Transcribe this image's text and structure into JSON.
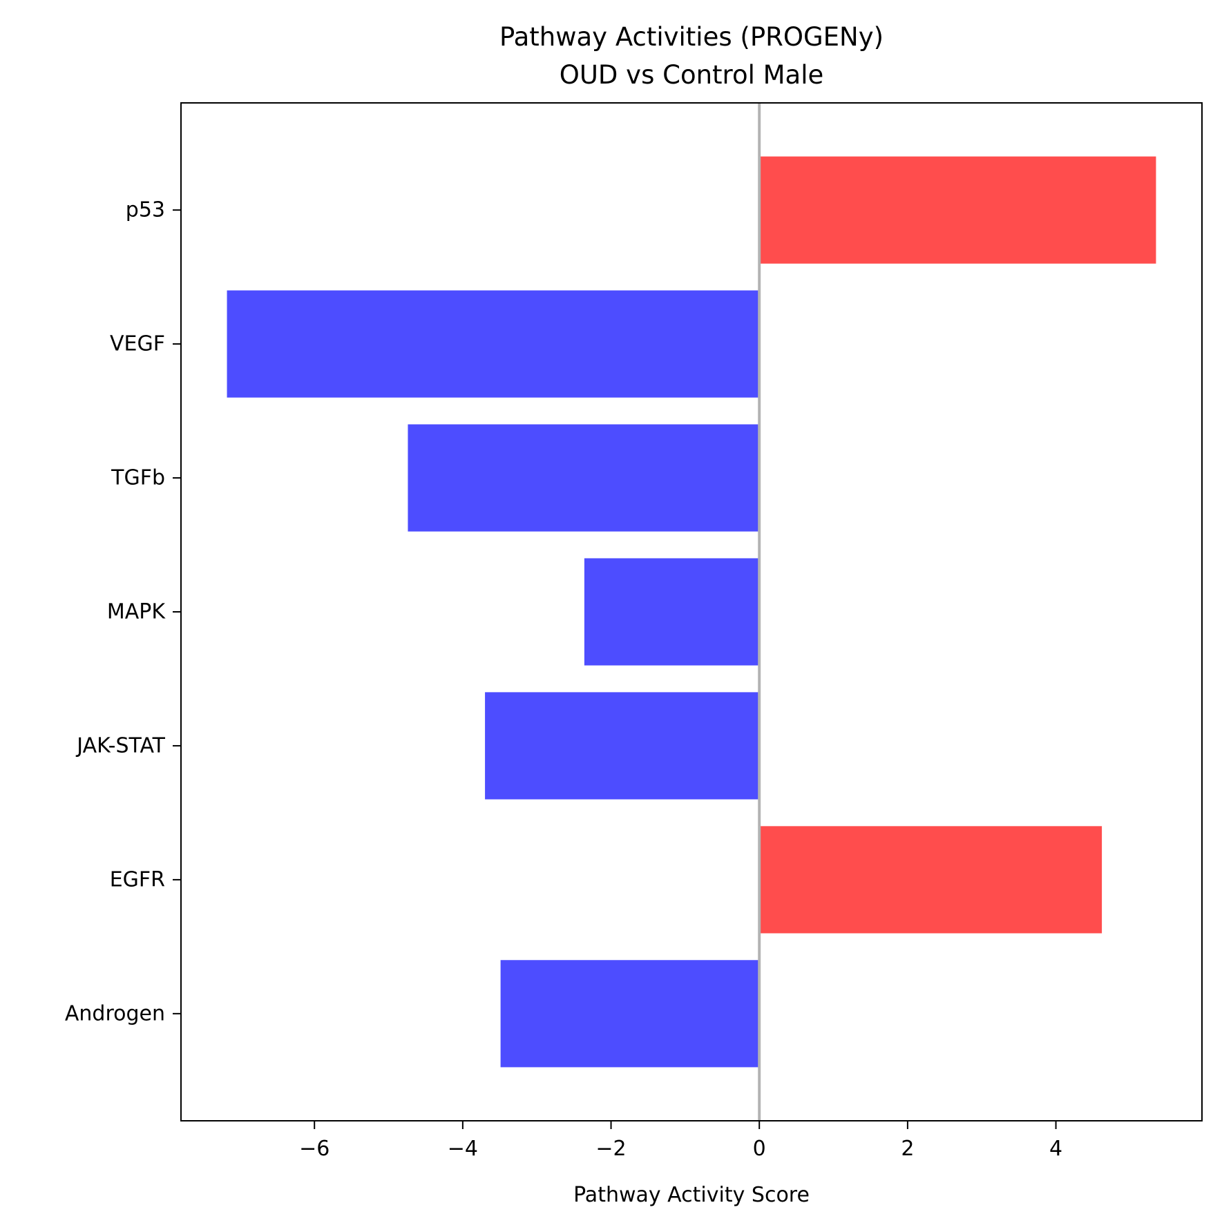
{
  "chart_data": {
    "type": "bar",
    "orientation": "horizontal",
    "title": "Pathway Activities (PROGENy)",
    "subtitle": "OUD vs Control Male",
    "xlabel": "Pathway Activity Score",
    "ylabel": "",
    "categories": [
      "p53",
      "VEGF",
      "TGFb",
      "MAPK",
      "JAK-STAT",
      "EGFR",
      "Androgen"
    ],
    "values": [
      5.35,
      -7.18,
      -4.74,
      -2.36,
      -3.7,
      4.62,
      -3.49
    ],
    "xlim": [
      -7.8,
      5.97
    ],
    "xticks": [
      -6,
      -4,
      -2,
      0,
      2,
      4
    ],
    "xtick_labels": [
      "−6",
      "−4",
      "−2",
      "0",
      "2",
      "4"
    ],
    "grid": false,
    "zero_line": true,
    "colors": {
      "positive": "#ff4d4d",
      "negative": "#4d4dff",
      "zero_line": "#b3b3b3",
      "axes": "#000000"
    }
  }
}
